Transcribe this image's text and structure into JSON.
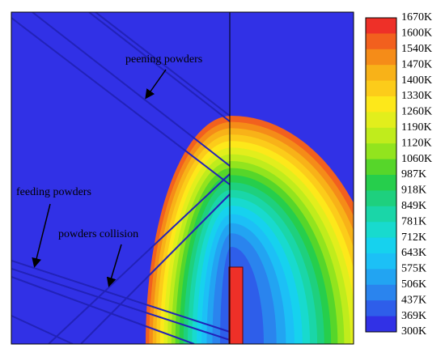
{
  "annotations": {
    "peening": "peening powders",
    "feeding": "feeding powders",
    "collision": "powders collision"
  },
  "colorbar": {
    "labels": [
      "1670K",
      "1600K",
      "1540K",
      "1470K",
      "1400K",
      "1330K",
      "1260K",
      "1190K",
      "1120K",
      "1060K",
      "987K",
      "918K",
      "849K",
      "781K",
      "712K",
      "643K",
      "575K",
      "506K",
      "437K",
      "369K",
      "300K"
    ]
  }
}
